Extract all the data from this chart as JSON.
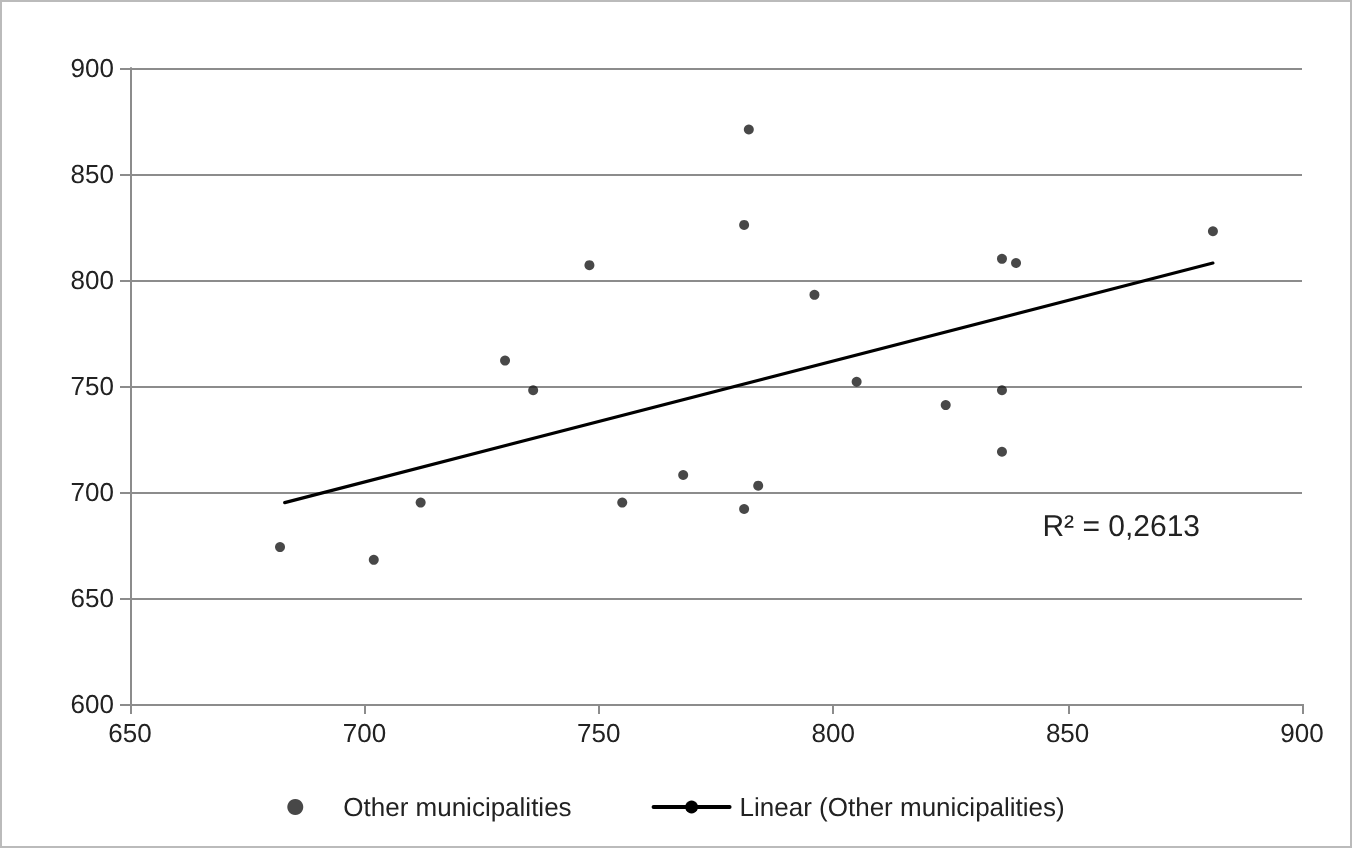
{
  "chart_data": {
    "type": "scatter",
    "series": [
      {
        "name": "Other municipalities",
        "color": "#1a1a1a",
        "marker": "circle",
        "x": [
          682,
          702,
          712,
          730,
          736,
          748,
          755,
          768,
          782,
          781,
          781,
          784,
          796,
          805,
          824,
          836,
          839,
          836,
          836,
          881
        ],
        "values": [
          674,
          668,
          695,
          762,
          748,
          807,
          695,
          708,
          871,
          826,
          692,
          703,
          793,
          752,
          741,
          810,
          808,
          748,
          719,
          823
        ]
      },
      {
        "name": "Linear (Other municipalities)",
        "type": "line",
        "color": "#000000",
        "marker": "none",
        "line_style": "solid",
        "x": [
          683,
          881
        ],
        "values": [
          695,
          808
        ]
      }
    ],
    "annotations": [
      "R² = 0,2613"
    ],
    "xlim": [
      650,
      900
    ],
    "xticks": [
      650,
      700,
      750,
      800,
      850,
      900
    ],
    "ylim": [
      600,
      900
    ],
    "yticks": [
      600,
      650,
      700,
      750,
      800,
      850,
      900
    ],
    "grid": "y",
    "legend": "bottom"
  }
}
